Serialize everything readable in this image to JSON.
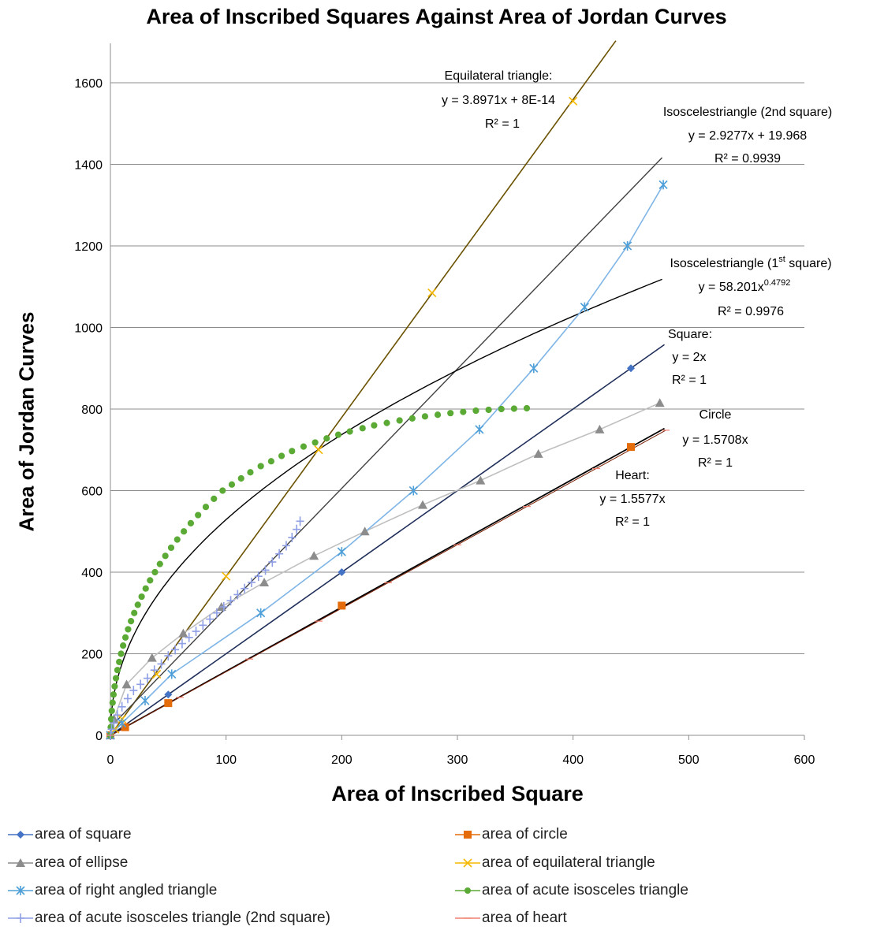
{
  "chart_data": {
    "type": "scatter",
    "title": "Area of Inscribed Squares Against Area of Jordan Curves",
    "xlabel": "Area of Inscribed Square",
    "ylabel": "Area of  Jordan Curves",
    "xlim": [
      0,
      600
    ],
    "ylim": [
      0,
      1700
    ],
    "x_ticks": [
      "0",
      "100",
      "200",
      "300",
      "400",
      "500",
      "600"
    ],
    "y_ticks": [
      "0",
      "200",
      "400",
      "600",
      "800",
      "1000",
      "1200",
      "1400",
      "1600"
    ],
    "grid": "horizontal",
    "legend_position": "bottom",
    "series": [
      {
        "name": "area of square",
        "color": "#4472c4",
        "marker": "diamond",
        "line": "#1f2f5a",
        "points": [
          [
            0,
            0
          ],
          [
            50,
            100
          ],
          [
            200,
            400
          ],
          [
            450,
            900
          ]
        ]
      },
      {
        "name": "area of circle",
        "color": "#e46c0a",
        "marker": "square",
        "line": "#3a1a00",
        "points": [
          [
            0,
            0
          ],
          [
            12.7,
            20
          ],
          [
            50,
            79
          ],
          [
            200,
            318
          ],
          [
            450,
            707
          ]
        ]
      },
      {
        "name": "area of ellipse",
        "color": "#8c8c8c",
        "marker": "triangle",
        "line": "#bfbfbf",
        "points": [
          [
            0,
            0
          ],
          [
            3,
            40
          ],
          [
            14,
            125
          ],
          [
            36,
            190
          ],
          [
            63,
            250
          ],
          [
            96,
            315
          ],
          [
            133,
            375
          ],
          [
            176,
            440
          ],
          [
            220,
            500
          ],
          [
            270,
            565
          ],
          [
            320,
            625
          ],
          [
            370,
            690
          ],
          [
            423,
            750
          ],
          [
            475,
            815
          ]
        ]
      },
      {
        "name": "area of equilateral triangle",
        "color": "#f5b800",
        "marker": "x",
        "line": "#6b5200",
        "points": [
          [
            0,
            0
          ],
          [
            4,
            15
          ],
          [
            10,
            40
          ],
          [
            40,
            150
          ],
          [
            100,
            390
          ],
          [
            180,
            700
          ],
          [
            278,
            1085
          ],
          [
            400,
            1555
          ]
        ]
      },
      {
        "name": "area of right angled triangle",
        "color": "#4f9fd8",
        "marker": "asterisk",
        "line": "#7fb5e6",
        "points": [
          [
            0,
            0
          ],
          [
            10,
            30
          ],
          [
            30,
            85
          ],
          [
            53,
            150
          ],
          [
            130,
            300
          ],
          [
            200,
            450
          ],
          [
            262,
            600
          ],
          [
            319,
            750
          ],
          [
            366,
            900
          ],
          [
            410,
            1050
          ],
          [
            447,
            1200
          ],
          [
            478,
            1350
          ]
        ]
      },
      {
        "name": "area of acute isosceles triangle",
        "color": "#5aaa35",
        "marker": "circle",
        "line": "#000000",
        "points": [
          [
            0,
            0
          ],
          [
            0.3,
            20
          ],
          [
            0.7,
            40
          ],
          [
            1.2,
            60
          ],
          [
            1.9,
            80
          ],
          [
            2.7,
            100
          ],
          [
            3.7,
            120
          ],
          [
            4.8,
            140
          ],
          [
            6.1,
            160
          ],
          [
            7.6,
            180
          ],
          [
            9.2,
            200
          ],
          [
            11,
            220
          ],
          [
            13,
            240
          ],
          [
            15.3,
            260
          ],
          [
            17.8,
            280
          ],
          [
            20.6,
            300
          ],
          [
            23.7,
            320
          ],
          [
            27,
            340
          ],
          [
            30.5,
            360
          ],
          [
            34.3,
            380
          ],
          [
            38.5,
            400
          ],
          [
            42.8,
            420
          ],
          [
            47.5,
            440
          ],
          [
            52.5,
            460
          ],
          [
            57.8,
            480
          ],
          [
            63.5,
            500
          ],
          [
            69.5,
            520
          ],
          [
            75.8,
            540
          ],
          [
            82.5,
            560
          ],
          [
            89.5,
            580
          ],
          [
            97,
            600
          ],
          [
            105,
            615
          ],
          [
            113,
            630
          ],
          [
            121,
            645
          ],
          [
            130,
            660
          ],
          [
            139,
            672
          ],
          [
            148,
            685
          ],
          [
            157,
            697
          ],
          [
            167,
            708
          ],
          [
            177,
            718
          ],
          [
            187,
            728
          ],
          [
            197,
            737
          ],
          [
            207,
            745
          ],
          [
            218,
            753
          ],
          [
            228,
            760
          ],
          [
            239,
            766
          ],
          [
            250,
            772
          ],
          [
            261,
            777
          ],
          [
            272,
            782
          ],
          [
            283,
            786
          ],
          [
            294,
            790
          ],
          [
            305,
            793
          ],
          [
            316,
            796
          ],
          [
            327,
            798
          ],
          [
            338,
            800
          ],
          [
            349,
            801
          ],
          [
            360,
            802
          ]
        ]
      },
      {
        "name": "area of acute isosceles triangle (2nd square)",
        "color": "#8f9fe6",
        "marker": "plus",
        "line": "#404040",
        "points": [
          [
            0,
            0
          ],
          [
            1,
            15
          ],
          [
            3,
            30
          ],
          [
            6,
            50
          ],
          [
            10,
            70
          ],
          [
            15,
            90
          ],
          [
            20,
            110
          ],
          [
            26,
            125
          ],
          [
            32,
            140
          ],
          [
            38,
            160
          ],
          [
            44,
            175
          ],
          [
            50,
            195
          ],
          [
            56,
            210
          ],
          [
            62,
            225
          ],
          [
            68,
            240
          ],
          [
            74,
            255
          ],
          [
            80,
            270
          ],
          [
            86,
            285
          ],
          [
            92,
            300
          ],
          [
            98,
            315
          ],
          [
            104,
            330
          ],
          [
            110,
            345
          ],
          [
            116,
            360
          ],
          [
            122,
            375
          ],
          [
            128,
            390
          ],
          [
            134,
            405
          ],
          [
            140,
            425
          ],
          [
            146,
            445
          ],
          [
            152,
            465
          ],
          [
            157,
            485
          ],
          [
            161,
            505
          ],
          [
            164,
            525
          ]
        ]
      },
      {
        "name": "area of heart",
        "color": "#f08070",
        "marker": "dash",
        "line": "#000000",
        "points": [
          [
            0,
            0
          ],
          [
            60,
            93
          ],
          [
            120,
            187
          ],
          [
            180,
            280
          ],
          [
            240,
            374
          ],
          [
            300,
            467
          ],
          [
            360,
            561
          ],
          [
            420,
            654
          ],
          [
            480,
            748
          ]
        ]
      }
    ],
    "trendlines": [
      {
        "label": "Equilateral triangle:",
        "equation": "y = 3.8971x + 8E-14",
        "r2": "R² = 1",
        "slope": 3.8971,
        "intercept": 0,
        "x_range": [
          0,
          437
        ]
      },
      {
        "label": "Isoscelestriangle (2nd square)",
        "equation": "y = 2.9277x + 19.968",
        "r2": "R² = 0.9939",
        "slope": 2.9277,
        "intercept": 19.968,
        "x_range": [
          0,
          477
        ]
      },
      {
        "label": "Isoscelestriangle (1",
        "label_sup": "st",
        "label_tail": " square)",
        "equation_base": "y = 58.201x",
        "equation_exp": "0.4792",
        "r2": "R² = 0.9976",
        "coef": 58.201,
        "power": 0.4792,
        "x_range": [
          0.3,
          477
        ]
      },
      {
        "label": "Square:",
        "equation": "y = 2x",
        "r2": "R² = 1",
        "slope": 2,
        "intercept": 0,
        "x_range": [
          0,
          479
        ]
      },
      {
        "label": "Circle",
        "equation": "y = 1.5708x",
        "r2": "R² = 1",
        "slope": 1.5708,
        "intercept": 0,
        "x_range": [
          0,
          479
        ]
      },
      {
        "label": "Heart:",
        "equation": "y = 1.5577x",
        "r2": "R² = 1",
        "slope": 1.5577,
        "intercept": 0,
        "x_range": [
          0,
          480
        ]
      }
    ]
  }
}
